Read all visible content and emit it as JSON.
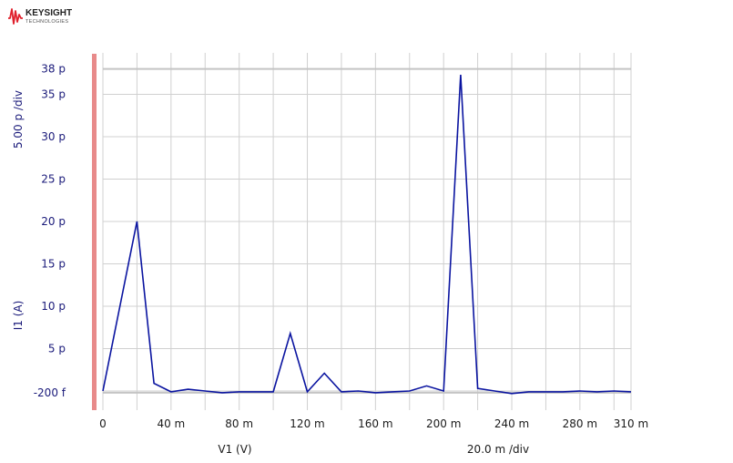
{
  "logo": {
    "brand": "KEYSIGHT",
    "subtitle": "TECHNOLOGIES",
    "accent_color": "#e0202c"
  },
  "chart_data": {
    "type": "line",
    "xlabel": "V1 (V)",
    "ylabel": "I1 (A)",
    "x_div_label": "20.0 m /div",
    "y_div_label": "5.00 p /div",
    "xlim": [
      0,
      0.31
    ],
    "ylim": [
      -2e-13,
      3.8e-11
    ],
    "x_tick_labels": [
      {
        "value": 0,
        "label": "0"
      },
      {
        "value": 0.04,
        "label": "40 m"
      },
      {
        "value": 0.08,
        "label": "80 m"
      },
      {
        "value": 0.12,
        "label": "120 m"
      },
      {
        "value": 0.16,
        "label": "160 m"
      },
      {
        "value": 0.2,
        "label": "200 m"
      },
      {
        "value": 0.24,
        "label": "240 m"
      },
      {
        "value": 0.28,
        "label": "280 m"
      },
      {
        "value": 0.31,
        "label": "310 m"
      }
    ],
    "y_tick_labels": [
      {
        "value": 38,
        "label": "38 p"
      },
      {
        "value": 35,
        "label": "35 p"
      },
      {
        "value": 30,
        "label": "30 p"
      },
      {
        "value": 25,
        "label": "25 p"
      },
      {
        "value": 20,
        "label": "20 p"
      },
      {
        "value": 15,
        "label": "15 p"
      },
      {
        "value": 10,
        "label": "10 p"
      },
      {
        "value": 5,
        "label": "5 p"
      },
      {
        "value": -0.2,
        "label": "-200 f"
      }
    ],
    "x_unit_note": "x in volts",
    "series": [
      {
        "color": "#0a14a0",
        "x": [
          0,
          0.02,
          0.03,
          0.04,
          0.05,
          0.06,
          0.07,
          0.08,
          0.09,
          0.1,
          0.11,
          0.12,
          0.13,
          0.14,
          0.15,
          0.16,
          0.17,
          0.18,
          0.19,
          0.2,
          0.21,
          0.22,
          0.23,
          0.24,
          0.25,
          0.26,
          0.27,
          0.28,
          0.29,
          0.3,
          0.31
        ],
        "y_p": [
          0,
          20,
          0.9,
          -0.1,
          0.2,
          0,
          -0.2,
          -0.1,
          -0.1,
          -0.1,
          6.8,
          -0.1,
          2.1,
          -0.1,
          0,
          -0.2,
          -0.1,
          0,
          0.6,
          0,
          37.3,
          0.3,
          0,
          -0.3,
          -0.1,
          -0.1,
          -0.1,
          0,
          -0.1,
          0,
          -0.1
        ]
      }
    ],
    "grid": true,
    "reference_lines_y": [
      38,
      -0.2
    ]
  }
}
